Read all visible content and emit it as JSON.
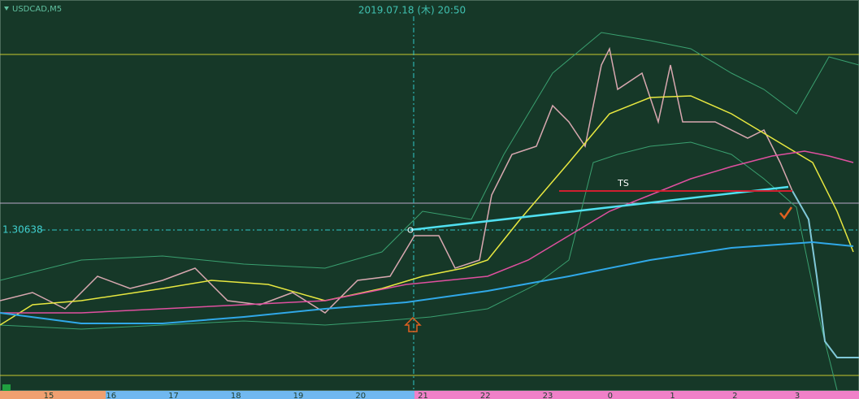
{
  "header": {
    "symbol": "USDCAD,M5",
    "datetime": "2019.07.18 (木) 20:50"
  },
  "price_label": "1.30638",
  "annotation": "TS",
  "x_axis_labels": [
    "15",
    "16",
    "17",
    "18",
    "19",
    "20",
    "21",
    "22",
    "23",
    "0",
    "1",
    "2",
    "3"
  ]
}
